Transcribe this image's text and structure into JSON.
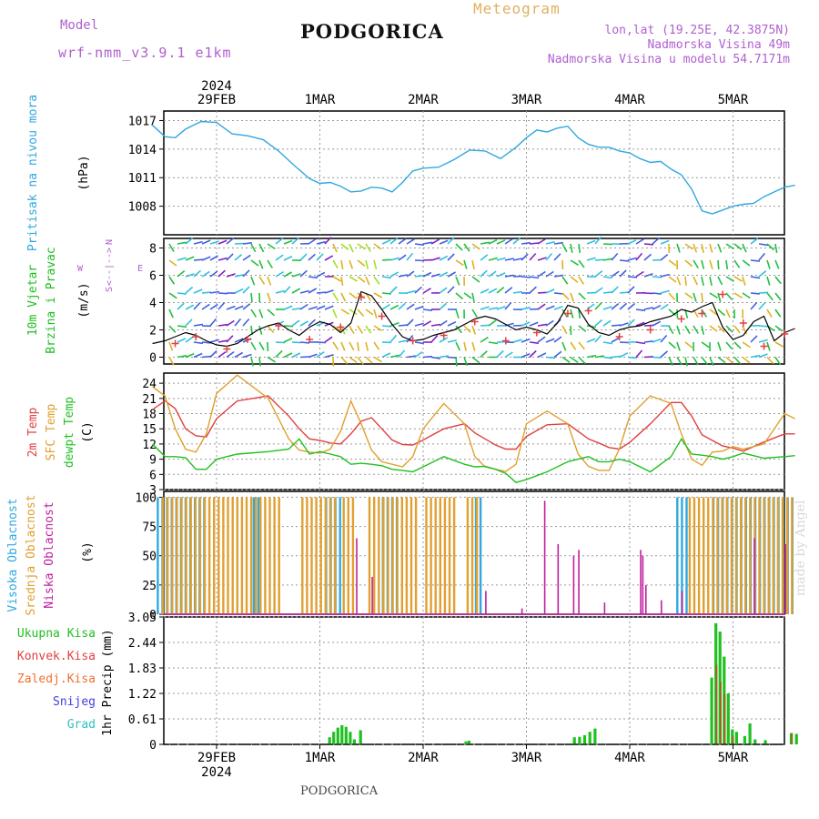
{
  "header": {
    "model_label": "Model",
    "model_name": "wrf-nmm_v3.9.1 e1km",
    "title": "PODGORICA",
    "meteogram_label": "Meteogram",
    "lonlat": "lon,lat (19.25E, 42.3875N)",
    "altitude": "Nadmorska Visina 49m",
    "altitude_model": "Nadmorska Visina u modelu 54.7171m"
  },
  "footer": {
    "station": "PODGORICA",
    "made_by": "made by Angel"
  },
  "top_axis": {
    "year": "2024",
    "days": [
      {
        "label": "29FEB",
        "x": 0
      },
      {
        "label": "1MAR",
        "x": 1
      },
      {
        "label": "2MAR",
        "x": 2
      },
      {
        "label": "3MAR",
        "x": 3
      },
      {
        "label": "4MAR",
        "x": 4
      },
      {
        "label": "5MAR",
        "x": 5
      }
    ]
  },
  "bottom_axis": {
    "year": "2024"
  },
  "colors": {
    "pressure": "#30a8e0",
    "wind_label": "#20c020",
    "wind_label2": "#20c020",
    "t2m": "#e04040",
    "sfc": "#e0a030",
    "dewpt": "#20c020",
    "high_cloud": "#30a8e0",
    "mid_cloud": "#e0a030",
    "low_cloud": "#c020a0",
    "rain_total": "#20c020",
    "rain_conv": "#e04040",
    "rain_frz": "#f07030",
    "snow": "#4040e0",
    "hail": "#30c0c0"
  },
  "chart_data": [
    {
      "type": "line",
      "panel": "pressure",
      "ylabel_main": "Pritisak na nivou mora",
      "unit": "(hPa)",
      "ylim": [
        1005,
        1018
      ],
      "yticks": [
        "1017",
        "1014",
        "1011",
        "1008"
      ],
      "ytick_values": [
        1017,
        1014,
        1011,
        1008
      ],
      "x": [
        -0.62,
        -0.5,
        -0.4,
        -0.3,
        -0.15,
        0.0,
        0.15,
        0.3,
        0.45,
        0.6,
        0.75,
        0.9,
        1.0,
        1.1,
        1.2,
        1.3,
        1.4,
        1.5,
        1.6,
        1.7,
        1.8,
        1.9,
        2.0,
        2.15,
        2.3,
        2.45,
        2.6,
        2.75,
        2.9,
        3.0,
        3.1,
        3.2,
        3.3,
        3.4,
        3.5,
        3.6,
        3.7,
        3.8,
        3.9,
        4.0,
        4.1,
        4.2,
        4.3,
        4.4,
        4.5,
        4.6,
        4.7,
        4.8,
        4.9,
        5.0,
        5.1,
        5.2,
        5.3,
        5.4,
        5.5,
        5.6
      ],
      "values": [
        1016.5,
        1015.3,
        1015.2,
        1016.1,
        1016.9,
        1016.8,
        1015.6,
        1015.4,
        1015.0,
        1013.8,
        1012.3,
        1010.9,
        1010.4,
        1010.5,
        1010.1,
        1009.5,
        1009.6,
        1010.0,
        1009.9,
        1009.5,
        1010.5,
        1011.7,
        1012.0,
        1012.1,
        1012.9,
        1013.9,
        1013.8,
        1013.0,
        1014.2,
        1015.2,
        1016.0,
        1015.8,
        1016.2,
        1016.4,
        1015.2,
        1014.5,
        1014.2,
        1014.2,
        1013.8,
        1013.6,
        1013.0,
        1012.6,
        1012.7,
        1011.9,
        1011.3,
        1009.8,
        1007.5,
        1007.2,
        1007.6,
        1008.0,
        1008.2,
        1008.3,
        1009.0,
        1009.5,
        1010.0,
        1010.2
      ]
    },
    {
      "type": "line",
      "panel": "wind",
      "ylabel_main": "10m Vjetar",
      "ylabel_sub": "Brzina i Pravac",
      "unit": "(m/s)",
      "compass": [
        "W",
        "<--|-->",
        "E",
        "S",
        "N"
      ],
      "ylim": [
        -0.5,
        8.7
      ],
      "yticks": [
        "8",
        "6",
        "4",
        "2",
        "0"
      ],
      "ytick_values": [
        8,
        6,
        4,
        2,
        0
      ],
      "x": [
        -0.62,
        -0.5,
        -0.4,
        -0.3,
        -0.2,
        -0.1,
        0.0,
        0.1,
        0.2,
        0.3,
        0.4,
        0.5,
        0.6,
        0.7,
        0.8,
        0.9,
        1.0,
        1.1,
        1.2,
        1.3,
        1.4,
        1.5,
        1.6,
        1.7,
        1.8,
        1.9,
        2.0,
        2.1,
        2.2,
        2.3,
        2.4,
        2.5,
        2.6,
        2.7,
        2.8,
        2.9,
        3.0,
        3.1,
        3.2,
        3.3,
        3.4,
        3.5,
        3.6,
        3.7,
        3.8,
        3.9,
        4.0,
        4.1,
        4.2,
        4.3,
        4.4,
        4.5,
        4.6,
        4.7,
        4.8,
        4.9,
        5.0,
        5.1,
        5.2,
        5.3,
        5.4,
        5.5,
        5.6
      ],
      "values": [
        1.0,
        1.2,
        1.5,
        1.8,
        1.6,
        1.2,
        0.9,
        0.8,
        1.0,
        1.5,
        2.0,
        2.3,
        2.5,
        2.0,
        1.6,
        2.2,
        2.6,
        2.4,
        1.8,
        2.5,
        4.8,
        4.5,
        3.5,
        2.4,
        1.5,
        1.2,
        1.3,
        1.6,
        1.8,
        2.0,
        2.4,
        2.8,
        3.0,
        2.8,
        2.4,
        2.0,
        2.2,
        2.0,
        1.7,
        2.5,
        3.8,
        3.6,
        2.4,
        1.8,
        1.6,
        2.0,
        2.2,
        2.3,
        2.6,
        2.8,
        3.0,
        3.5,
        3.3,
        3.7,
        4.0,
        2.2,
        1.3,
        1.6,
        2.6,
        3.0,
        1.2,
        1.8,
        2.1
      ],
      "gust_x": [
        -0.4,
        -0.2,
        0.1,
        0.3,
        0.6,
        0.9,
        1.2,
        1.4,
        1.6,
        1.9,
        2.2,
        2.5,
        2.8,
        3.1,
        3.4,
        3.6,
        3.9,
        4.2,
        4.5,
        4.7,
        4.9,
        5.1,
        5.3,
        5.5
      ],
      "gust_values": [
        1.0,
        1.5,
        0.6,
        1.3,
        2.3,
        1.3,
        2.2,
        4.4,
        3.0,
        1.2,
        1.6,
        2.6,
        1.2,
        1.8,
        3.2,
        3.4,
        1.5,
        2.0,
        2.8,
        3.2,
        4.6,
        2.5,
        0.8,
        1.7
      ]
    },
    {
      "type": "line",
      "panel": "temperature",
      "series": [
        {
          "name": "2m Temp",
          "key": "t2m",
          "values": [
            18.8,
            20.5,
            19.0,
            15.0,
            13.6,
            13.4,
            17.0,
            20.5,
            21.5,
            17.5,
            15.0,
            13.0,
            12.7,
            12.2,
            12.0,
            14.0,
            16.5,
            17.2,
            15.0,
            12.8,
            11.9,
            11.8,
            12.8,
            15.0,
            16.0,
            14.2,
            13.0,
            11.8,
            11.0,
            11.0,
            13.5,
            15.8,
            16.0,
            14.5,
            13.0,
            12.2,
            11.3,
            11.0,
            12.3,
            16.0,
            20.2,
            20.2,
            17.5,
            13.8,
            12.7,
            11.6,
            11.2,
            10.6,
            12.4,
            14.0,
            14.0
          ]
        },
        {
          "name": "SFC Temp",
          "key": "sfc",
          "values": [
            23.3,
            21.5,
            15.0,
            11.0,
            10.4,
            14.0,
            22.0,
            25.6,
            21.0,
            13.0,
            10.8,
            10.4,
            10.2,
            11.0,
            14.5,
            20.5,
            16.0,
            10.8,
            8.5,
            8.0,
            7.5,
            9.5,
            15.0,
            20.0,
            16.0,
            9.5,
            7.5,
            7.0,
            6.6,
            8.0,
            16.0,
            18.5,
            16.0,
            10.0,
            7.6,
            6.8,
            6.8,
            11.0,
            17.5,
            21.5,
            20.0,
            14.0,
            9.0,
            7.8,
            10.4,
            10.6,
            11.5,
            11.0,
            12.0,
            18.0,
            17.0
          ]
        },
        {
          "name": "dewpt Temp",
          "key": "dewpt",
          "values": [
            12.0,
            9.5,
            9.5,
            9.3,
            7.0,
            7.0,
            9.0,
            10.0,
            10.5,
            11.0,
            13.0,
            10.0,
            10.5,
            10.0,
            9.5,
            8.0,
            8.2,
            8.0,
            7.7,
            7.0,
            6.8,
            6.5,
            7.5,
            9.5,
            8.0,
            7.5,
            7.6,
            7.0,
            6.2,
            4.4,
            5.0,
            6.5,
            8.5,
            9.0,
            9.5,
            8.5,
            8.5,
            9.0,
            8.5,
            6.5,
            9.5,
            13.0,
            10.0,
            9.8,
            9.5,
            9.0,
            9.5,
            10.2,
            9.2,
            9.5,
            9.7
          ]
        }
      ],
      "x": [
        -0.62,
        -0.5,
        -0.4,
        -0.3,
        -0.2,
        -0.1,
        0.0,
        0.2,
        0.5,
        0.7,
        0.8,
        0.9,
        1.0,
        1.1,
        1.2,
        1.3,
        1.4,
        1.5,
        1.6,
        1.7,
        1.8,
        1.9,
        2.0,
        2.2,
        2.4,
        2.5,
        2.6,
        2.7,
        2.8,
        2.9,
        3.0,
        3.2,
        3.4,
        3.5,
        3.6,
        3.7,
        3.8,
        3.9,
        4.0,
        4.2,
        4.4,
        4.5,
        4.6,
        4.7,
        4.8,
        4.9,
        5.0,
        5.1,
        5.3,
        5.5,
        5.6
      ],
      "unit": "(C)",
      "ylim": [
        3,
        26
      ],
      "yticks": [
        "24",
        "21",
        "18",
        "15",
        "12",
        "9",
        "6",
        "3"
      ],
      "ytick_values": [
        24,
        21,
        18,
        15,
        12,
        9,
        6,
        3
      ]
    },
    {
      "type": "bar",
      "panel": "cloud",
      "series_names": [
        "Visoka Oblacnost",
        "Srednja Oblacnost",
        "Niska Oblacnost"
      ],
      "unit": "(%)",
      "ylim": [
        0,
        105
      ],
      "yticks": [
        "100",
        "75",
        "50",
        "25",
        "0"
      ],
      "ytick_values": [
        100,
        75,
        50,
        25,
        0
      ],
      "high": [
        [
          -0.58,
          -0.12,
          100
        ],
        [
          0.35,
          0.4,
          100
        ],
        [
          1.05,
          1.2,
          100
        ],
        [
          1.6,
          1.75,
          100
        ],
        [
          2.5,
          2.55,
          100
        ],
        [
          4.45,
          4.55,
          100
        ],
        [
          4.8,
          5.6,
          100
        ]
      ],
      "mid": [
        [
          -0.55,
          0.6,
          100
        ],
        [
          0.8,
          1.15,
          100
        ],
        [
          1.2,
          1.35,
          100
        ],
        [
          1.45,
          1.95,
          100
        ],
        [
          2.0,
          2.3,
          100
        ],
        [
          2.4,
          2.55,
          100
        ],
        [
          4.55,
          5.6,
          100
        ]
      ],
      "low_spikes": [
        [
          1.35,
          65
        ],
        [
          1.5,
          32
        ],
        [
          2.6,
          20
        ],
        [
          2.95,
          5
        ],
        [
          3.17,
          97
        ],
        [
          3.3,
          60
        ],
        [
          3.45,
          50
        ],
        [
          3.5,
          55
        ],
        [
          3.75,
          10
        ],
        [
          4.1,
          55
        ],
        [
          4.12,
          50
        ],
        [
          4.15,
          25
        ],
        [
          4.3,
          12
        ],
        [
          4.5,
          20
        ],
        [
          5.2,
          65
        ],
        [
          5.5,
          60
        ]
      ]
    },
    {
      "type": "bar",
      "panel": "precip",
      "series_names": [
        "Ukupna Kisa",
        "Konvek.Kisa",
        "Zaledj.Kisa",
        "Snijeg",
        "Grad"
      ],
      "unit": "1hr Precip (mm)",
      "ylim": [
        0,
        3.05
      ],
      "yticks": [
        "3.05",
        "2.44",
        "1.83",
        "1.22",
        "0.61",
        "0"
      ],
      "ytick_values": [
        3.05,
        2.44,
        1.83,
        1.22,
        0.61,
        0
      ],
      "total": [
        [
          1.08,
          0.17
        ],
        [
          1.12,
          0.3
        ],
        [
          1.16,
          0.4
        ],
        [
          1.2,
          0.46
        ],
        [
          1.24,
          0.42
        ],
        [
          1.28,
          0.3
        ],
        [
          1.32,
          0.12
        ],
        [
          1.38,
          0.34
        ],
        [
          2.4,
          0.07
        ],
        [
          2.43,
          0.09
        ],
        [
          3.45,
          0.17
        ],
        [
          3.5,
          0.18
        ],
        [
          3.55,
          0.22
        ],
        [
          3.6,
          0.3
        ],
        [
          3.65,
          0.38
        ],
        [
          4.78,
          1.6
        ],
        [
          4.82,
          2.9
        ],
        [
          4.86,
          2.7
        ],
        [
          4.9,
          2.1
        ],
        [
          4.94,
          1.22
        ],
        [
          4.98,
          0.36
        ],
        [
          5.02,
          0.3
        ],
        [
          5.1,
          0.2
        ],
        [
          5.15,
          0.5
        ],
        [
          5.2,
          0.12
        ],
        [
          5.3,
          0.1
        ],
        [
          5.55,
          0.27
        ],
        [
          5.6,
          0.25
        ]
      ],
      "conv": [
        [
          4.82,
          1.9
        ],
        [
          4.86,
          1.5
        ],
        [
          4.9,
          1.2
        ],
        [
          4.98,
          0.2
        ],
        [
          5.55,
          0.27
        ]
      ]
    }
  ]
}
